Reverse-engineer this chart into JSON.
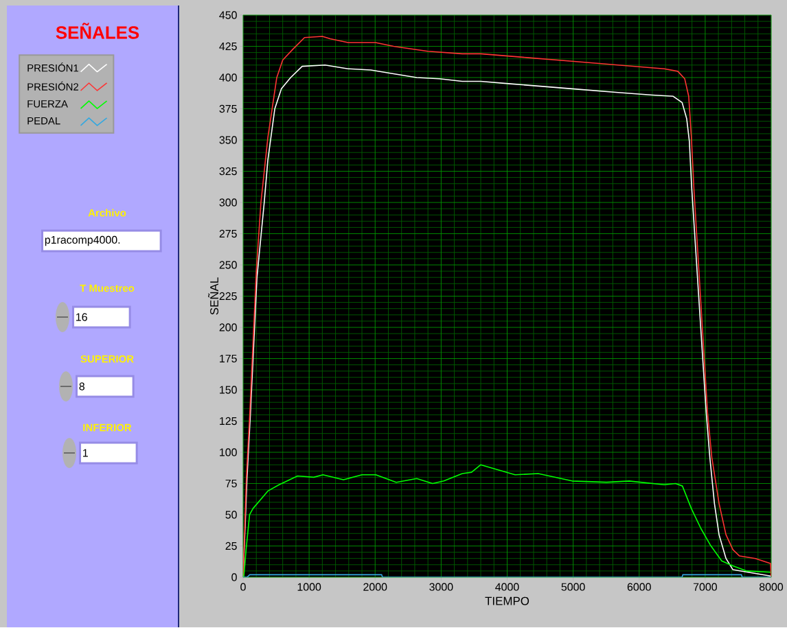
{
  "chart_data": {
    "type": "line",
    "legend_title": "SEÑALES",
    "xlabel": "TIEMPO",
    "ylabel": "SEÑAL",
    "xlim": [
      0,
      8000
    ],
    "ylim": [
      0,
      450
    ],
    "xticks": [
      0,
      {
        "value": 200,
        "label": null
      },
      {
        "value": 400,
        "label": null
      },
      {
        "value": 600,
        "label": null
      },
      {
        "value": 800,
        "label": null
      },
      1000,
      {
        "value": 1200,
        "label": null
      },
      {
        "value": 1400,
        "label": null
      },
      {
        "value": 1600,
        "label": null
      },
      {
        "value": 1800,
        "label": null
      },
      2000,
      {
        "value": 2200,
        "label": null
      },
      {
        "value": 2400,
        "label": null
      },
      {
        "value": 2600,
        "label": null
      },
      {
        "value": 2800,
        "label": null
      },
      3000,
      {
        "value": 3200,
        "label": null
      },
      {
        "value": 3400,
        "label": null
      },
      {
        "value": 3600,
        "label": null
      },
      {
        "value": 3800,
        "label": null
      },
      4000,
      {
        "value": 4200,
        "label": null
      },
      {
        "value": 4400,
        "label": null
      },
      {
        "value": 4600,
        "label": null
      },
      {
        "value": 4800,
        "label": null
      },
      5000,
      {
        "value": 5200,
        "label": null
      },
      {
        "value": 5400,
        "label": null
      },
      {
        "value": 5600,
        "label": null
      },
      {
        "value": 5800,
        "label": null
      },
      6000,
      {
        "value": 6200,
        "label": null
      },
      {
        "value": 6400,
        "label": null
      },
      {
        "value": 6600,
        "label": null
      },
      {
        "value": 6800,
        "label": null
      },
      7000,
      {
        "value": 7200,
        "label": null
      },
      {
        "value": 7400,
        "label": null
      },
      {
        "value": 7600,
        "label": null
      },
      {
        "value": 7800,
        "label": null
      },
      8000
    ],
    "yticks": [
      0,
      {
        "value": 5,
        "label": null
      },
      {
        "value": 10,
        "label": null
      },
      {
        "value": 15,
        "label": null
      },
      {
        "value": 20,
        "label": null
      },
      25,
      {
        "value": 30,
        "label": null
      },
      {
        "value": 35,
        "label": null
      },
      {
        "value": 40,
        "label": null
      },
      {
        "value": 45,
        "label": null
      },
      50,
      {
        "value": 55,
        "label": null
      },
      {
        "value": 60,
        "label": null
      },
      {
        "value": 65,
        "label": null
      },
      {
        "value": 70,
        "label": null
      },
      75,
      {
        "value": 80,
        "label": null
      },
      {
        "value": 85,
        "label": null
      },
      {
        "value": 90,
        "label": null
      },
      {
        "value": 95,
        "label": null
      },
      100,
      {
        "value": 105,
        "label": null
      },
      {
        "value": 110,
        "label": null
      },
      {
        "value": 115,
        "label": null
      },
      {
        "value": 120,
        "label": null
      },
      125,
      {
        "value": 130,
        "label": null
      },
      {
        "value": 135,
        "label": null
      },
      {
        "value": 140,
        "label": null
      },
      {
        "value": 145,
        "label": null
      },
      150,
      {
        "value": 155,
        "label": null
      },
      {
        "value": 160,
        "label": null
      },
      {
        "value": 165,
        "label": null
      },
      {
        "value": 170,
        "label": null
      },
      175,
      {
        "value": 180,
        "label": null
      },
      {
        "value": 185,
        "label": null
      },
      {
        "value": 190,
        "label": null
      },
      {
        "value": 195,
        "label": null
      },
      200,
      {
        "value": 205,
        "label": null
      },
      {
        "value": 210,
        "label": null
      },
      {
        "value": 215,
        "label": null
      },
      {
        "value": 220,
        "label": null
      },
      225,
      {
        "value": 230,
        "label": null
      },
      {
        "value": 235,
        "label": null
      },
      {
        "value": 240,
        "label": null
      },
      {
        "value": 245,
        "label": null
      },
      250,
      {
        "value": 255,
        "label": null
      },
      {
        "value": 260,
        "label": null
      },
      {
        "value": 265,
        "label": null
      },
      {
        "value": 270,
        "label": null
      },
      275,
      {
        "value": 280,
        "label": null
      },
      {
        "value": 285,
        "label": null
      },
      {
        "value": 290,
        "label": null
      },
      {
        "value": 295,
        "label": null
      },
      300,
      {
        "value": 305,
        "label": null
      },
      {
        "value": 310,
        "label": null
      },
      {
        "value": 315,
        "label": null
      },
      {
        "value": 320,
        "label": null
      },
      325,
      {
        "value": 330,
        "label": null
      },
      {
        "value": 335,
        "label": null
      },
      {
        "value": 340,
        "label": null
      },
      {
        "value": 345,
        "label": null
      },
      350,
      {
        "value": 355,
        "label": null
      },
      {
        "value": 360,
        "label": null
      },
      {
        "value": 365,
        "label": null
      },
      {
        "value": 370,
        "label": null
      },
      375,
      {
        "value": 380,
        "label": null
      },
      {
        "value": 385,
        "label": null
      },
      {
        "value": 390,
        "label": null
      },
      {
        "value": 395,
        "label": null
      },
      400,
      {
        "value": 405,
        "label": null
      },
      {
        "value": 410,
        "label": null
      },
      {
        "value": 415,
        "label": null
      },
      {
        "value": 420,
        "label": null
      },
      425,
      {
        "value": 430,
        "label": null
      },
      {
        "value": 435,
        "label": null
      },
      {
        "value": 440,
        "label": null
      },
      {
        "value": 445,
        "label": null
      },
      450
    ],
    "grid": true,
    "legend": "left",
    "line_style": "solid",
    "series": [
      {
        "name": "PRESIÓN1",
        "color": "#ffffff",
        "x": [
          0,
          60,
          110,
          210,
          320,
          375,
          480,
          580,
          720,
          895,
          1240,
          1590,
          1935,
          2280,
          2630,
          2975,
          3320,
          3600,
          4050,
          4985,
          5680,
          6200,
          6515,
          6650,
          6720,
          6760,
          6795,
          7015,
          7070,
          7140,
          7210,
          7315,
          7420,
          7760,
          7990
        ],
        "values": [
          0,
          80,
          130,
          240,
          300,
          334,
          375,
          391,
          400,
          409,
          410,
          407,
          406,
          403,
          400,
          399,
          397,
          397,
          395,
          391,
          388,
          386,
          385,
          380,
          367,
          349,
          312,
          132,
          96,
          59,
          34,
          15,
          6,
          3,
          1
        ]
      },
      {
        "name": "PRESIÓN2",
        "color": "#ff3333",
        "x": [
          0,
          50,
          100,
          200,
          270,
          375,
          510,
          600,
          760,
          930,
          1200,
          1320,
          1590,
          2005,
          2280,
          2800,
          3320,
          3600,
          4295,
          4985,
          5680,
          6380,
          6585,
          6690,
          6750,
          6790,
          6830,
          7035,
          7100,
          7210,
          7315,
          7420,
          7520,
          7760,
          7990,
          8000
        ],
        "values": [
          0,
          80,
          130,
          245,
          300,
          352,
          400,
          414,
          423,
          432,
          433,
          431,
          428,
          428,
          425,
          421,
          419,
          419,
          416,
          413,
          410,
          407,
          405,
          399,
          385,
          353,
          310,
          132,
          96,
          59,
          34,
          22,
          17,
          15,
          11,
          0
        ]
      },
      {
        "name": "FUERZA",
        "color": "#00ff00",
        "x": [
          0,
          10,
          45,
          98,
          150,
          375,
          545,
          825,
          1070,
          1210,
          1520,
          1800,
          2010,
          2320,
          2630,
          2870,
          3040,
          3320,
          3460,
          3600,
          4120,
          4470,
          4985,
          5505,
          5850,
          6380,
          6550,
          6655,
          6790,
          6935,
          7075,
          7250,
          7420,
          7630,
          7990
        ],
        "values": [
          0,
          0,
          22,
          50,
          55,
          69,
          74,
          81,
          80,
          82,
          78,
          82,
          82,
          76,
          79,
          75,
          77,
          83,
          84,
          90,
          82,
          83,
          77,
          76,
          77,
          74,
          75,
          73,
          55,
          39,
          26,
          13,
          9,
          5,
          4
        ]
      },
      {
        "name": "PEDAL",
        "color": "#33a8e0",
        "x": [
          0,
          60,
          100,
          2100,
          2110,
          6650,
          6660,
          7550,
          7560,
          8000
        ],
        "values": [
          0,
          0,
          2,
          2,
          0,
          0,
          2,
          2,
          0,
          0
        ]
      }
    ],
    "annotations": [
      "Archivo",
      "p1racomp4000.",
      "T Muestreo",
      "16",
      "SUPERIOR",
      "8",
      "INFERIOR",
      "1"
    ]
  }
}
